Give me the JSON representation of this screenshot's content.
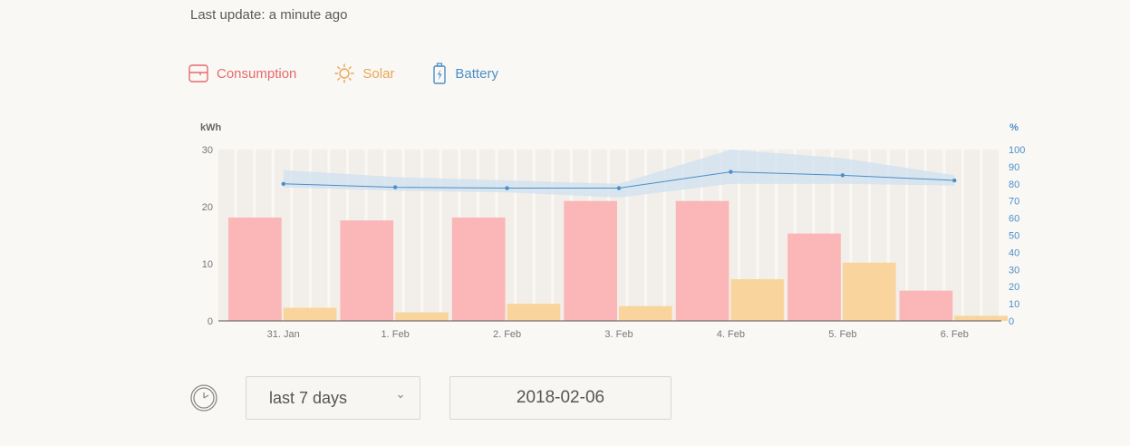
{
  "last_update": "Last update: a minute ago",
  "legend": {
    "consumption": "Consumption",
    "solar": "Solar",
    "battery": "Battery"
  },
  "colors": {
    "consumption": "#fbb7b7",
    "solar": "#f9d59d",
    "battery": "#4a8fc8",
    "consumption_text": "#e56b6b",
    "solar_text": "#e9a654"
  },
  "controls": {
    "range": "last 7 days",
    "date": "2018-02-06"
  },
  "chart_data": {
    "type": "bar",
    "categories": [
      "31. Jan",
      "1. Feb",
      "2. Feb",
      "3. Feb",
      "4. Feb",
      "5. Feb",
      "6. Feb"
    ],
    "series": [
      {
        "name": "Consumption",
        "axis": "left",
        "values": [
          18.1,
          17.6,
          18.1,
          21.0,
          21.0,
          15.3,
          5.3
        ]
      },
      {
        "name": "Solar",
        "axis": "left",
        "values": [
          2.3,
          1.5,
          3.0,
          2.6,
          7.3,
          10.2,
          0.9
        ]
      },
      {
        "name": "Battery",
        "axis": "right",
        "type": "line",
        "values": [
          80,
          78,
          77.5,
          77.5,
          87,
          85,
          82
        ],
        "band_min": [
          78,
          76,
          75,
          72,
          80,
          80,
          79
        ],
        "band_max": [
          88,
          84,
          82,
          80,
          100,
          95,
          85
        ]
      }
    ],
    "ylabel_left": "kWh",
    "ylabel_right": "%",
    "y_left_ticks": [
      "0",
      "10",
      "20",
      "30"
    ],
    "y_right_ticks": [
      "0",
      "10",
      "20",
      "30",
      "40",
      "50",
      "60",
      "70",
      "80",
      "90",
      "100"
    ],
    "ylim_left": [
      0,
      30
    ],
    "ylim_right": [
      0,
      100
    ]
  }
}
